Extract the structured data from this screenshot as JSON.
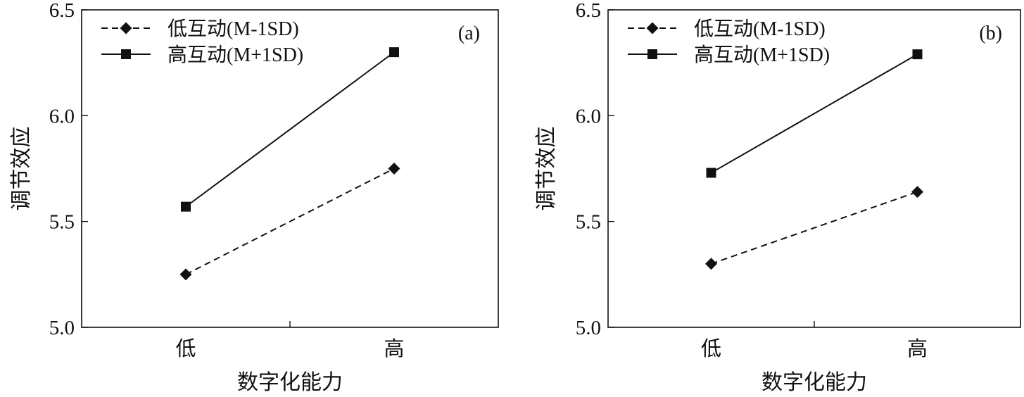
{
  "chart_data": [
    {
      "type": "line",
      "panel_label": "(a)",
      "xlabel": "数字化能力",
      "ylabel": "调节效应",
      "categories": [
        "低",
        "高"
      ],
      "ylim": [
        5.0,
        6.5
      ],
      "yticks": [
        "5.0",
        "5.5",
        "6.0",
        "6.5"
      ],
      "legend_position": "top-left",
      "grid": false,
      "series": [
        {
          "name": "低互动(M-1SD)",
          "values": [
            5.25,
            5.75
          ],
          "marker": "diamond",
          "line_style": "dashed",
          "color": "#111111"
        },
        {
          "name": "高互动(M+1SD)",
          "values": [
            5.57,
            6.3
          ],
          "marker": "square",
          "line_style": "solid",
          "color": "#111111"
        }
      ]
    },
    {
      "type": "line",
      "panel_label": "(b)",
      "xlabel": "数字化能力",
      "ylabel": "调节效应",
      "categories": [
        "低",
        "高"
      ],
      "ylim": [
        5.0,
        6.5
      ],
      "yticks": [
        "5.0",
        "5.5",
        "6.0",
        "6.5"
      ],
      "legend_position": "top-left",
      "grid": false,
      "series": [
        {
          "name": "低互动(M-1SD)",
          "values": [
            5.3,
            5.64
          ],
          "marker": "diamond",
          "line_style": "dashed",
          "color": "#111111"
        },
        {
          "name": "高互动(M+1SD)",
          "values": [
            5.73,
            6.29
          ],
          "marker": "square",
          "line_style": "solid",
          "color": "#111111"
        }
      ]
    }
  ]
}
